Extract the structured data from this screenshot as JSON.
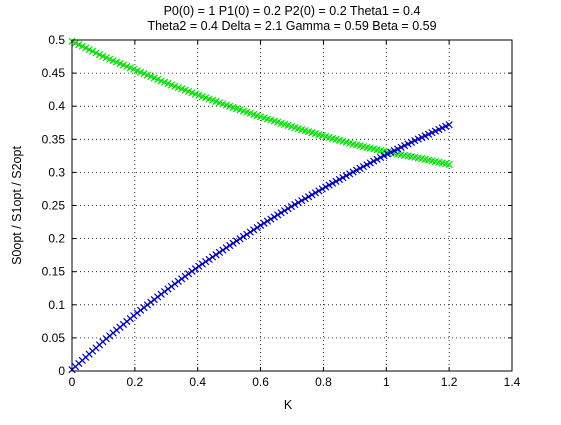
{
  "chart_data": {
    "type": "scatter",
    "title_lines": [
      "P0(0) = 1 P1(0) = 0.2 P2(0) = 0.2 Theta1 = 0.4",
      "Theta2 = 0.4 Delta = 2.1 Gamma = 0.59 Beta = 0.59"
    ],
    "xlabel": "K",
    "ylabel": "S0opt / S1opt / S2opt",
    "xlim": [
      0,
      1.4
    ],
    "ylim": [
      0,
      0.5
    ],
    "x_ticks": [
      0,
      0.2,
      0.4,
      0.6,
      0.8,
      1,
      1.2,
      1.4
    ],
    "x_tick_labels": [
      "0",
      "0.2",
      "0.4",
      "0.6",
      "0.8",
      "1",
      "1.2",
      "1.4"
    ],
    "y_ticks": [
      0,
      0.05,
      0.1,
      0.15,
      0.2,
      0.25,
      0.3,
      0.35,
      0.4,
      0.45,
      0.5
    ],
    "y_tick_labels": [
      "0",
      "0.05",
      "0.1",
      "0.15",
      "0.2",
      "0.25",
      "0.3",
      "0.35",
      "0.4",
      "0.45",
      "0.5"
    ],
    "grid": true,
    "marker": "x",
    "series": [
      {
        "color": "#00e000",
        "x": [
          0,
          0.1,
          0.2,
          0.3,
          0.4,
          0.5,
          0.6,
          0.7,
          0.8,
          0.9,
          1.0,
          1.1,
          1.2
        ],
        "y": [
          0.498,
          0.475,
          0.455,
          0.435,
          0.417,
          0.4,
          0.384,
          0.369,
          0.355,
          0.342,
          0.331,
          0.322,
          0.312
        ]
      },
      {
        "color": "#0000c0",
        "x": [
          0,
          0.1,
          0.2,
          0.3,
          0.4,
          0.5,
          0.6,
          0.7,
          0.8,
          0.9,
          1.0,
          1.1,
          1.2
        ],
        "y": [
          0.002,
          0.045,
          0.085,
          0.122,
          0.157,
          0.189,
          0.22,
          0.249,
          0.276,
          0.302,
          0.327,
          0.35,
          0.372
        ]
      }
    ]
  }
}
